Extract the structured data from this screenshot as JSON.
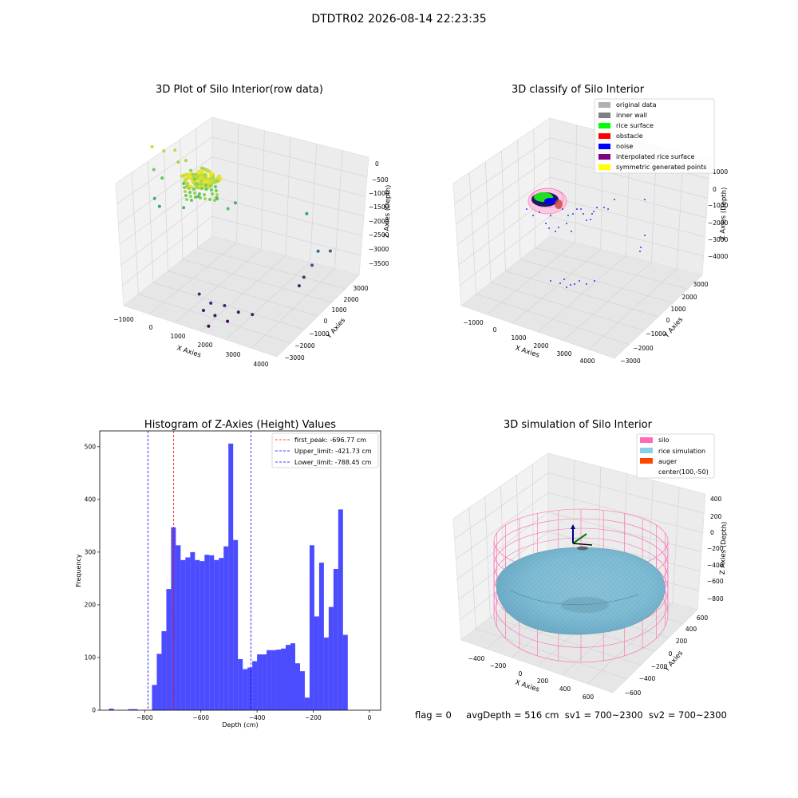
{
  "figure_title": "DTDTR02 2026-08-14 22:23:35",
  "status_line": {
    "flag": "flag = 0",
    "avg_depth": "avgDepth = 516 cm",
    "sv1": "sv1 = 700~2300",
    "sv2": "sv2 = 700~2300"
  },
  "colors": {
    "hist_bar": "#0000ff",
    "peak_line": "#ff0000",
    "limit_line": "#0000ff",
    "silo": "#ff69b4",
    "rice_simulation": "#87ceeb",
    "auger": "#ff4500",
    "rice_surface": "#00ff00",
    "noise": "#0000ff",
    "original_data": "#b0b0b0",
    "inner_wall": "#808080",
    "obstacle": "#ff0000",
    "interpolated": "#800080",
    "symmetric": "#ffff00"
  },
  "chart_data": [
    {
      "type": "scatter",
      "subtype": "3d",
      "title": "3D Plot of Silo Interior(row data)",
      "xlabel": "X Axies",
      "ylabel": "Y Axies",
      "zlabel": "Z Axies (Depth)",
      "x_ticks": [
        "−1000",
        "0",
        "1000",
        "2000",
        "3000",
        "4000"
      ],
      "y_ticks": [
        "−3000",
        "−2000",
        "−1000",
        "0",
        "1000",
        "2000",
        "3000"
      ],
      "z_ticks": [
        "0",
        "−500",
        "−1000",
        "−1500",
        "−2000",
        "−2500",
        "−3000",
        "−3500"
      ],
      "xlim": [
        -1000,
        4000
      ],
      "ylim": [
        -3000,
        3000
      ],
      "zlim": [
        -3500,
        0
      ],
      "colormap": "viridis by depth",
      "points": [
        {
          "x": -1000,
          "y": 0,
          "z": -300
        },
        {
          "x": -700,
          "y": 200,
          "z": -400
        },
        {
          "x": -400,
          "y": 300,
          "z": -350
        },
        {
          "x": -200,
          "y": -100,
          "z": -500
        },
        {
          "x": 0,
          "y": 0,
          "z": -450
        },
        {
          "x": 200,
          "y": -200,
          "z": -600
        },
        {
          "x": -900,
          "y": -200,
          "z": -800
        },
        {
          "x": -600,
          "y": -400,
          "z": -900
        },
        {
          "x": 400,
          "y": -500,
          "z": -700
        },
        {
          "x": 800,
          "y": -700,
          "z": -800
        },
        {
          "x": 1200,
          "y": -900,
          "z": -900
        },
        {
          "x": 1600,
          "y": -1100,
          "z": -1000
        },
        {
          "x": 600,
          "y": -800,
          "z": -1000
        },
        {
          "x": 1000,
          "y": -300,
          "z": -1100
        },
        {
          "x": -700,
          "y": -900,
          "z": -1300
        },
        {
          "x": -500,
          "y": -1100,
          "z": -1400
        },
        {
          "x": 300,
          "y": -1300,
          "z": -1200
        },
        {
          "x": 1400,
          "y": 200,
          "z": -1300
        },
        {
          "x": 3200,
          "y": 1000,
          "z": -1500
        },
        {
          "x": 3600,
          "y": 800,
          "z": -2300
        },
        {
          "x": 3500,
          "y": 600,
          "z": -2600
        },
        {
          "x": 3800,
          "y": 1200,
          "z": -2400
        },
        {
          "x": 3300,
          "y": 500,
          "z": -2900
        },
        {
          "x": 3200,
          "y": 400,
          "z": -3100
        },
        {
          "x": 1000,
          "y": -2000,
          "z": -3000
        },
        {
          "x": 1400,
          "y": -2100,
          "z": -3100
        },
        {
          "x": 1800,
          "y": -2000,
          "z": -3100
        },
        {
          "x": 2200,
          "y": -1900,
          "z": -3200
        },
        {
          "x": 2600,
          "y": -1800,
          "z": -3200
        },
        {
          "x": 1200,
          "y": -2200,
          "z": -3300
        },
        {
          "x": 1600,
          "y": -2300,
          "z": -3300
        },
        {
          "x": 2000,
          "y": -2300,
          "z": -3350
        },
        {
          "x": 1500,
          "y": -2600,
          "z": -3500
        }
      ]
    },
    {
      "type": "scatter",
      "subtype": "3d",
      "title": "3D classify of Silo Interior",
      "xlabel": "X Axies",
      "ylabel": "Y Axies",
      "zlabel": "Z Axies (Depth)",
      "x_ticks": [
        "−1000",
        "0",
        "1000",
        "2000",
        "3000",
        "4000"
      ],
      "y_ticks": [
        "−3000",
        "−2000",
        "−1000",
        "0",
        "1000",
        "2000",
        "3000"
      ],
      "z_ticks": [
        "1000",
        "0",
        "−1000",
        "−2000",
        "−3000",
        "−4000"
      ],
      "xlim": [
        -1000,
        4000
      ],
      "ylim": [
        -3000,
        3000
      ],
      "zlim": [
        -4000,
        1000
      ],
      "legend_position": "top-right",
      "legend": [
        {
          "label": "original data",
          "color": "#b0b0b0"
        },
        {
          "label": "inner wall",
          "color": "#808080"
        },
        {
          "label": "rice surface",
          "color": "#00ff00"
        },
        {
          "label": "obstacle",
          "color": "#ff0000"
        },
        {
          "label": "noise",
          "color": "#0000ff"
        },
        {
          "label": "interpolated rice surface",
          "color": "#800080"
        },
        {
          "label": "symmetric generated points",
          "color": "#ffff00"
        }
      ]
    },
    {
      "type": "bar",
      "subtype": "histogram",
      "title": "Histogram of Z-Axies (Height) Values",
      "xlabel": "Depth (cm)",
      "ylabel": "Frequency",
      "xlim": [
        -960,
        40
      ],
      "ylim": [
        0,
        530
      ],
      "x_ticks": [
        -800,
        -600,
        -400,
        -200,
        0
      ],
      "y_ticks": [
        0,
        100,
        200,
        300,
        400,
        500
      ],
      "bin_width": 17,
      "bins": [
        {
          "start": -927,
          "count": 3
        },
        {
          "start": -859,
          "count": 2
        },
        {
          "start": -842,
          "count": 2
        },
        {
          "start": -774,
          "count": 48
        },
        {
          "start": -757,
          "count": 107
        },
        {
          "start": -740,
          "count": 150
        },
        {
          "start": -723,
          "count": 230
        },
        {
          "start": -706,
          "count": 347
        },
        {
          "start": -689,
          "count": 313
        },
        {
          "start": -672,
          "count": 285
        },
        {
          "start": -655,
          "count": 290
        },
        {
          "start": -638,
          "count": 300
        },
        {
          "start": -621,
          "count": 285
        },
        {
          "start": -604,
          "count": 283
        },
        {
          "start": -587,
          "count": 295
        },
        {
          "start": -570,
          "count": 294
        },
        {
          "start": -553,
          "count": 285
        },
        {
          "start": -536,
          "count": 289
        },
        {
          "start": -519,
          "count": 311
        },
        {
          "start": -502,
          "count": 506
        },
        {
          "start": -485,
          "count": 323
        },
        {
          "start": -468,
          "count": 97
        },
        {
          "start": -451,
          "count": 78
        },
        {
          "start": -434,
          "count": 81
        },
        {
          "start": -417,
          "count": 93
        },
        {
          "start": -400,
          "count": 106
        },
        {
          "start": -383,
          "count": 106
        },
        {
          "start": -366,
          "count": 114
        },
        {
          "start": -349,
          "count": 114
        },
        {
          "start": -332,
          "count": 115
        },
        {
          "start": -315,
          "count": 117
        },
        {
          "start": -298,
          "count": 124
        },
        {
          "start": -281,
          "count": 127
        },
        {
          "start": -264,
          "count": 89
        },
        {
          "start": -247,
          "count": 74
        },
        {
          "start": -230,
          "count": 24
        },
        {
          "start": -213,
          "count": 313
        },
        {
          "start": -196,
          "count": 178
        },
        {
          "start": -179,
          "count": 280
        },
        {
          "start": -162,
          "count": 138
        },
        {
          "start": -145,
          "count": 196
        },
        {
          "start": -128,
          "count": 268
        },
        {
          "start": -111,
          "count": 381
        },
        {
          "start": -94,
          "count": 143
        }
      ],
      "lines": [
        {
          "label": "first_peak: -696.77 cm",
          "x": -696.77,
          "color": "#ff0000"
        },
        {
          "label": "Upper_limit: -421.73 cm",
          "x": -421.73,
          "color": "#0000ff"
        },
        {
          "label": "Lower_limit: -788.45 cm",
          "x": -788.45,
          "color": "#0000ff"
        }
      ],
      "legend_position": "top-right"
    },
    {
      "type": "scatter",
      "subtype": "3d-surface",
      "title": "3D simulation of Silo Interior",
      "xlabel": "X Axies",
      "ylabel": "Y Axies",
      "zlabel": "Z Axies (Depth)",
      "x_ticks": [
        "−400",
        "−200",
        "0",
        "200",
        "400",
        "600"
      ],
      "y_ticks": [
        "−600",
        "−400",
        "−200",
        "0",
        "200",
        "400",
        "600"
      ],
      "z_ticks": [
        "400",
        "200",
        "0",
        "−200",
        "−400",
        "−600",
        "−800"
      ],
      "xlim": [
        -500,
        700
      ],
      "ylim": [
        -700,
        700
      ],
      "zlim": [
        -900,
        450
      ],
      "legend_position": "top-right",
      "legend": [
        {
          "label": "silo",
          "color": "#ff69b4"
        },
        {
          "label": "rice simulation",
          "color": "#87ceeb"
        },
        {
          "label": "auger",
          "color": "#ff4500"
        },
        {
          "label": "center(100,-50)",
          "color": ""
        }
      ]
    }
  ]
}
